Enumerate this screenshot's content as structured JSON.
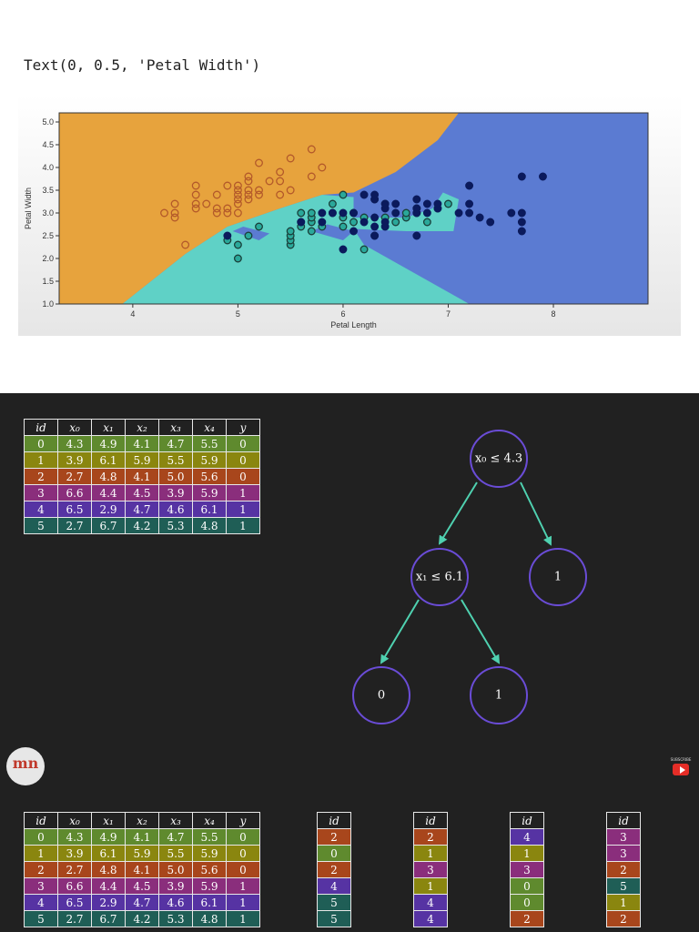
{
  "output_text": "Text(0, 0.5, 'Petal Width')",
  "chart_data": {
    "type": "scatter",
    "xlabel": "Petal Length",
    "ylabel": "Petal Width",
    "xlim": [
      3.3,
      8.9
    ],
    "ylim": [
      1.0,
      5.2
    ],
    "xticks": [
      "4",
      "5",
      "6",
      "7",
      "8"
    ],
    "yticks": [
      "1.0",
      "1.5",
      "2.0",
      "2.5",
      "3.0",
      "3.5",
      "4.0",
      "4.5",
      "5.0"
    ],
    "grid": false,
    "region_colors": {
      "class0": "#e7a33d",
      "class1": "#5fd1c6",
      "class2": "#5b7bd2"
    },
    "series": [
      {
        "color": "#b3592a",
        "points": [
          [
            4.3,
            3.0
          ],
          [
            4.4,
            2.9
          ],
          [
            4.4,
            3.0
          ],
          [
            4.4,
            3.2
          ],
          [
            4.5,
            2.3
          ],
          [
            4.6,
            3.1
          ],
          [
            4.6,
            3.2
          ],
          [
            4.6,
            3.4
          ],
          [
            4.6,
            3.6
          ],
          [
            4.7,
            3.2
          ],
          [
            4.8,
            3.0
          ],
          [
            4.8,
            3.1
          ],
          [
            4.8,
            3.4
          ],
          [
            4.9,
            3.0
          ],
          [
            4.9,
            3.1
          ],
          [
            4.9,
            3.6
          ],
          [
            5.0,
            3.0
          ],
          [
            5.0,
            3.2
          ],
          [
            5.0,
            3.3
          ],
          [
            5.0,
            3.4
          ],
          [
            5.0,
            3.5
          ],
          [
            5.0,
            3.6
          ],
          [
            5.1,
            3.3
          ],
          [
            5.1,
            3.4
          ],
          [
            5.1,
            3.5
          ],
          [
            5.1,
            3.7
          ],
          [
            5.1,
            3.8
          ],
          [
            5.2,
            3.4
          ],
          [
            5.2,
            3.5
          ],
          [
            5.2,
            4.1
          ],
          [
            5.3,
            3.7
          ],
          [
            5.4,
            3.4
          ],
          [
            5.4,
            3.7
          ],
          [
            5.4,
            3.9
          ],
          [
            5.5,
            3.5
          ],
          [
            5.5,
            4.2
          ],
          [
            5.7,
            3.8
          ],
          [
            5.7,
            4.4
          ],
          [
            5.8,
            4.0
          ]
        ]
      },
      {
        "color": "#2aa89a",
        "points": [
          [
            4.9,
            2.4
          ],
          [
            5.0,
            2.0
          ],
          [
            5.0,
            2.3
          ],
          [
            5.1,
            2.5
          ],
          [
            5.2,
            2.7
          ],
          [
            5.5,
            2.3
          ],
          [
            5.5,
            2.4
          ],
          [
            5.5,
            2.5
          ],
          [
            5.5,
            2.6
          ],
          [
            5.6,
            2.7
          ],
          [
            5.6,
            2.8
          ],
          [
            5.6,
            3.0
          ],
          [
            5.7,
            2.6
          ],
          [
            5.7,
            2.8
          ],
          [
            5.7,
            2.9
          ],
          [
            5.7,
            3.0
          ],
          [
            5.8,
            2.7
          ],
          [
            5.9,
            3.0
          ],
          [
            5.9,
            3.2
          ],
          [
            6.0,
            2.7
          ],
          [
            6.0,
            2.9
          ],
          [
            6.0,
            3.4
          ],
          [
            6.1,
            2.8
          ],
          [
            6.1,
            3.0
          ],
          [
            6.2,
            2.2
          ],
          [
            6.2,
            2.9
          ],
          [
            6.3,
            2.5
          ],
          [
            6.3,
            3.3
          ],
          [
            6.4,
            2.9
          ],
          [
            6.4,
            3.2
          ],
          [
            6.5,
            2.8
          ],
          [
            6.6,
            2.9
          ],
          [
            6.6,
            3.0
          ],
          [
            6.7,
            3.0
          ],
          [
            6.7,
            3.1
          ],
          [
            6.8,
            2.8
          ],
          [
            6.9,
            3.1
          ],
          [
            7.0,
            3.2
          ]
        ]
      },
      {
        "color": "#0b1a5c",
        "points": [
          [
            4.9,
            2.5
          ],
          [
            5.6,
            2.8
          ],
          [
            5.8,
            2.8
          ],
          [
            5.8,
            3.0
          ],
          [
            5.9,
            3.0
          ],
          [
            6.0,
            2.2
          ],
          [
            6.0,
            3.0
          ],
          [
            6.1,
            2.6
          ],
          [
            6.1,
            3.0
          ],
          [
            6.2,
            2.8
          ],
          [
            6.2,
            3.4
          ],
          [
            6.3,
            2.5
          ],
          [
            6.3,
            2.7
          ],
          [
            6.3,
            2.9
          ],
          [
            6.3,
            3.3
          ],
          [
            6.3,
            3.4
          ],
          [
            6.4,
            2.7
          ],
          [
            6.4,
            2.8
          ],
          [
            6.4,
            3.1
          ],
          [
            6.4,
            3.2
          ],
          [
            6.5,
            3.0
          ],
          [
            6.5,
            3.2
          ],
          [
            6.7,
            2.5
          ],
          [
            6.7,
            3.0
          ],
          [
            6.7,
            3.1
          ],
          [
            6.7,
            3.3
          ],
          [
            6.8,
            3.0
          ],
          [
            6.8,
            3.2
          ],
          [
            6.9,
            3.1
          ],
          [
            6.9,
            3.2
          ],
          [
            7.1,
            3.0
          ],
          [
            7.2,
            3.0
          ],
          [
            7.2,
            3.2
          ],
          [
            7.2,
            3.6
          ],
          [
            7.3,
            2.9
          ],
          [
            7.4,
            2.8
          ],
          [
            7.6,
            3.0
          ],
          [
            7.7,
            2.6
          ],
          [
            7.7,
            2.8
          ],
          [
            7.7,
            3.0
          ],
          [
            7.7,
            3.8
          ],
          [
            7.9,
            3.8
          ]
        ]
      }
    ]
  },
  "table_header": [
    "id",
    "x0",
    "x1",
    "x2",
    "x3",
    "x4",
    "y"
  ],
  "table_rows": [
    {
      "cells": [
        "0",
        "4.3",
        "4.9",
        "4.1",
        "4.7",
        "5.5",
        "0"
      ],
      "color": "#5f8a2e"
    },
    {
      "cells": [
        "1",
        "3.9",
        "6.1",
        "5.9",
        "5.5",
        "5.9",
        "0"
      ],
      "color": "#8a860f"
    },
    {
      "cells": [
        "2",
        "2.7",
        "4.8",
        "4.1",
        "5.0",
        "5.6",
        "0"
      ],
      "color": "#a8461c"
    },
    {
      "cells": [
        "3",
        "6.6",
        "4.4",
        "4.5",
        "3.9",
        "5.9",
        "1"
      ],
      "color": "#8a2e7c"
    },
    {
      "cells": [
        "4",
        "6.5",
        "2.9",
        "4.7",
        "4.6",
        "6.1",
        "1"
      ],
      "color": "#5633a3"
    },
    {
      "cells": [
        "5",
        "2.7",
        "6.7",
        "4.2",
        "5.3",
        "4.8",
        "1"
      ],
      "color": "#1f5e56"
    }
  ],
  "tree": {
    "root": "x₀ ≤ 4.3",
    "left": "x₁ ≤ 6.1",
    "right": "1",
    "left_left": "0",
    "left_right": "1"
  },
  "node_color": "#6a4cd6",
  "edge_color": "#4fd1b0",
  "logo_text": "mn",
  "yt_small_text": "SUBSCRIBE",
  "bootstrap_header": "id",
  "bootstrap_tables": [
    {
      "ids": [
        "2",
        "0",
        "2",
        "4",
        "5",
        "5"
      ]
    },
    {
      "ids": [
        "2",
        "1",
        "3",
        "1",
        "4",
        "4"
      ]
    },
    {
      "ids": [
        "4",
        "1",
        "3",
        "0",
        "0",
        "2"
      ]
    },
    {
      "ids": [
        "3",
        "3",
        "2",
        "5",
        "1",
        "2"
      ]
    }
  ]
}
